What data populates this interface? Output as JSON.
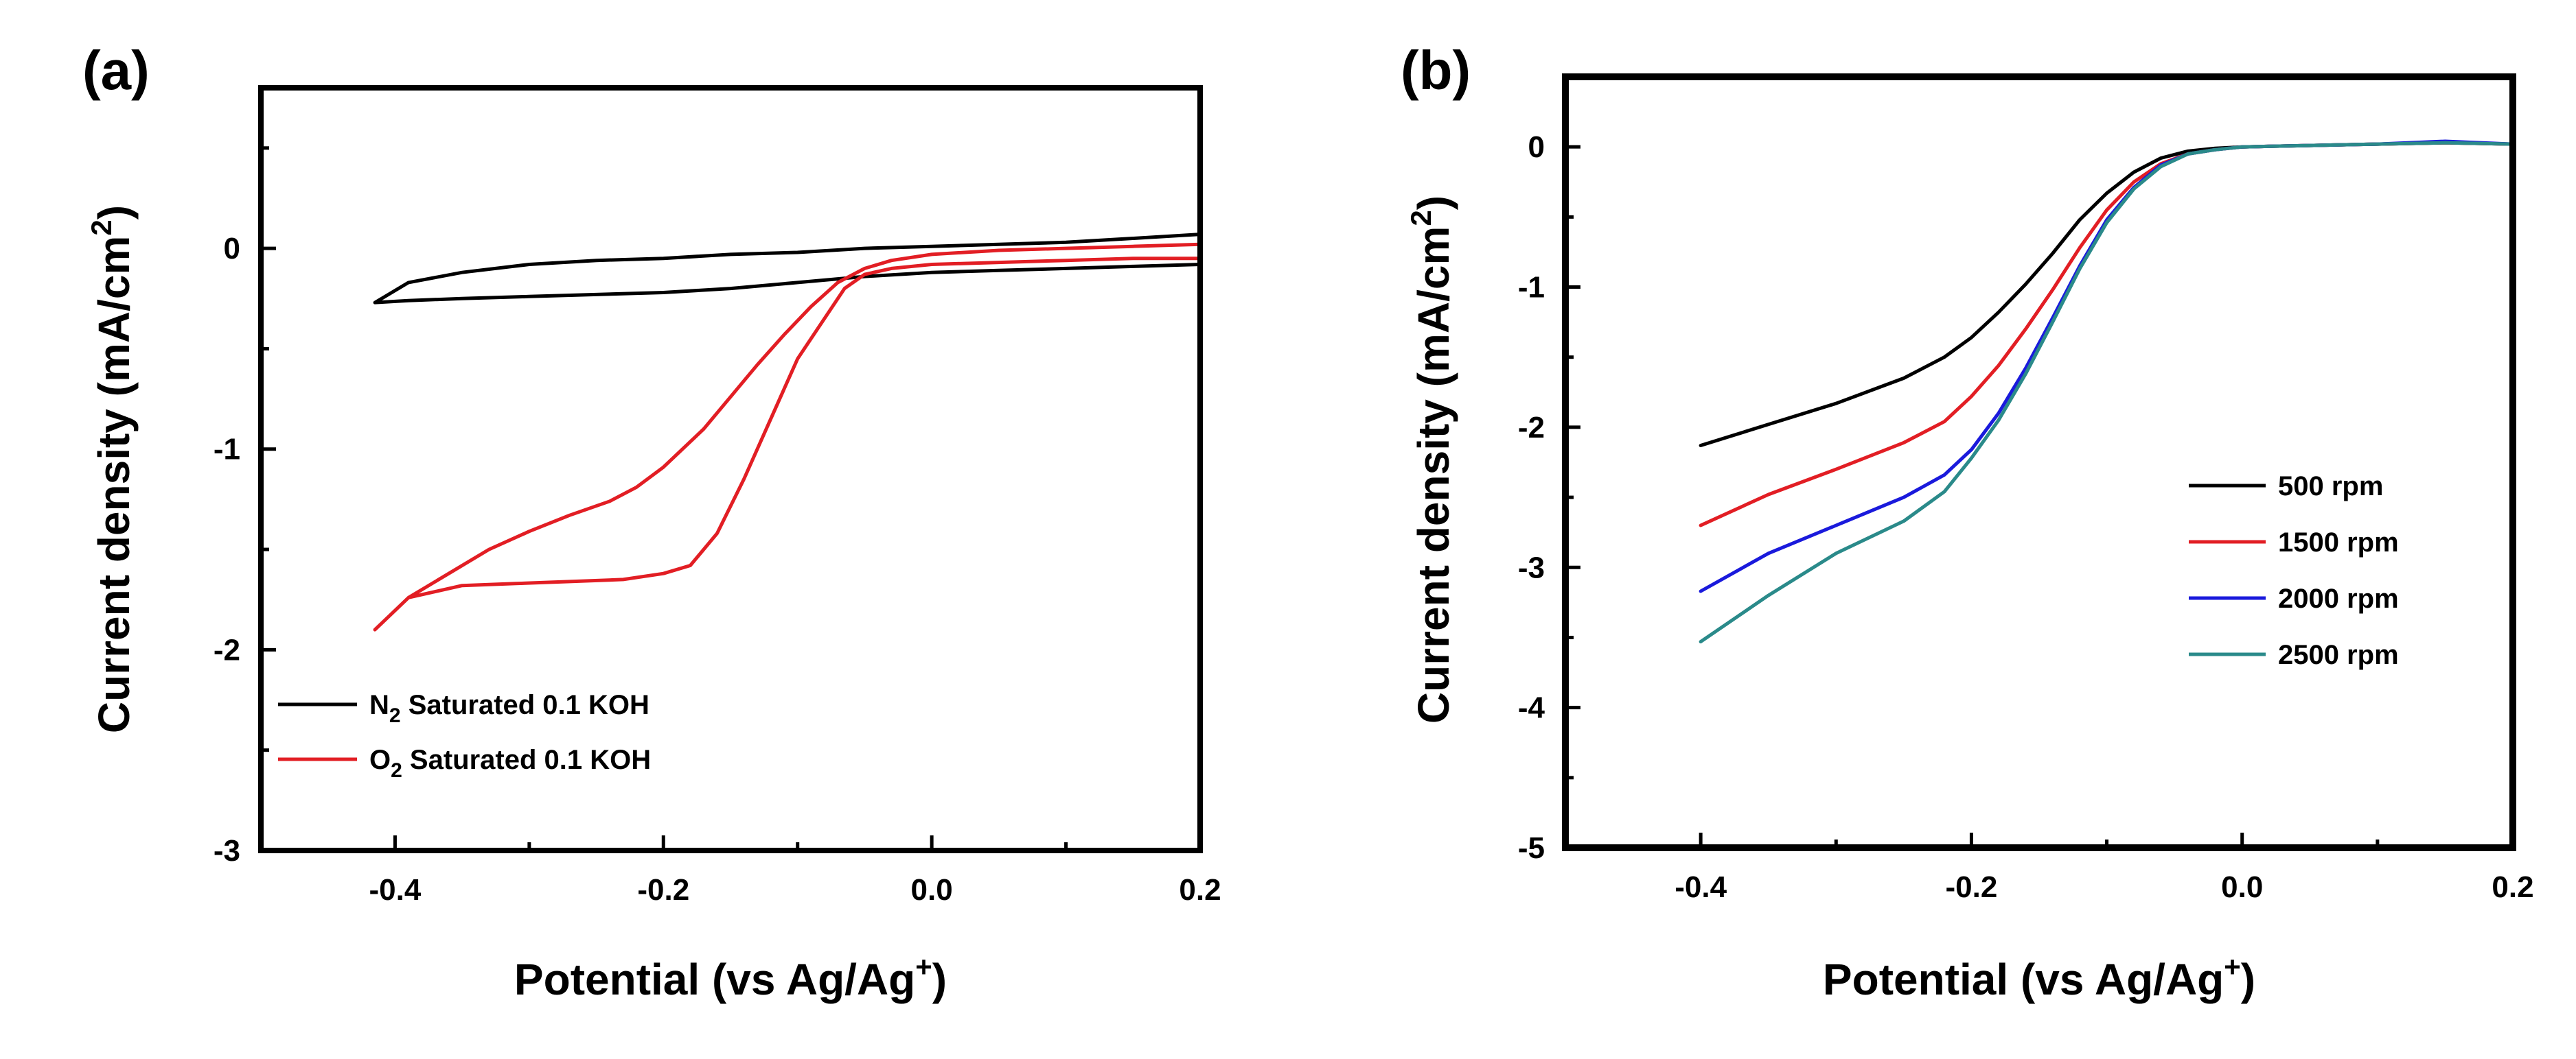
{
  "chart_data": [
    {
      "type": "line",
      "panel_label": "(a)",
      "xlabel_main": "Potential (vs Ag/Ag",
      "xlabel_sup": "+",
      "xlabel_end": ")",
      "ylabel_main": "Current density (mA/cm",
      "ylabel_sup": "2",
      "ylabel_end": ")",
      "xlim": [
        -0.5,
        0.2
      ],
      "ylim": [
        -3,
        0.8
      ],
      "x_ticks": [
        -0.4,
        -0.2,
        0.0,
        0.2
      ],
      "x_tick_labels": [
        "-0.4",
        "-0.2",
        "0.0",
        "0.2"
      ],
      "y_ticks": [
        0,
        -1,
        -2,
        -3
      ],
      "y_tick_labels": [
        "0",
        "-1",
        "-2",
        "-3"
      ],
      "legend_position": "bottom-left",
      "series": [
        {
          "name": "N2 Saturated 0.1 KOH",
          "legend_pre": "N",
          "legend_sub": "2",
          "legend_post": " Saturated 0.1 KOH",
          "color": "#000000",
          "x": [
            -0.415,
            -0.39,
            -0.35,
            -0.3,
            -0.25,
            -0.2,
            -0.15,
            -0.1,
            -0.05,
            0.0,
            0.05,
            0.1,
            0.15,
            0.2,
            0.2,
            0.15,
            0.1,
            0.05,
            0.0,
            -0.05,
            -0.1,
            -0.15,
            -0.2,
            -0.25,
            -0.3,
            -0.35,
            -0.39,
            -0.415
          ],
          "y": [
            -0.27,
            -0.26,
            -0.25,
            -0.24,
            -0.23,
            -0.22,
            -0.2,
            -0.17,
            -0.14,
            -0.12,
            -0.11,
            -0.1,
            -0.09,
            -0.08,
            0.07,
            0.05,
            0.03,
            0.02,
            0.01,
            0.0,
            -0.02,
            -0.03,
            -0.05,
            -0.06,
            -0.08,
            -0.12,
            -0.17,
            -0.27
          ]
        },
        {
          "name": "O2 Saturated 0.1 KOH",
          "legend_pre": "O",
          "legend_sub": "2",
          "legend_post": " Saturated 0.1 KOH",
          "color": "#e21e24",
          "x": [
            -0.415,
            -0.39,
            -0.36,
            -0.33,
            -0.3,
            -0.27,
            -0.24,
            -0.22,
            -0.2,
            -0.17,
            -0.15,
            -0.13,
            -0.11,
            -0.09,
            -0.07,
            -0.05,
            -0.03,
            0.0,
            0.05,
            0.1,
            0.15,
            0.2,
            0.2,
            0.15,
            0.1,
            0.05,
            0.0,
            -0.03,
            -0.05,
            -0.065,
            -0.08,
            -0.1,
            -0.12,
            -0.14,
            -0.16,
            -0.18,
            -0.2,
            -0.23,
            -0.27,
            -0.31,
            -0.35,
            -0.39,
            -0.415
          ],
          "y": [
            -1.9,
            -1.74,
            -1.62,
            -1.5,
            -1.41,
            -1.33,
            -1.26,
            -1.19,
            -1.09,
            -0.9,
            -0.74,
            -0.58,
            -0.43,
            -0.29,
            -0.17,
            -0.1,
            -0.06,
            -0.03,
            -0.01,
            0.0,
            0.01,
            0.02,
            -0.05,
            -0.05,
            -0.06,
            -0.07,
            -0.08,
            -0.1,
            -0.13,
            -0.2,
            -0.35,
            -0.55,
            -0.85,
            -1.15,
            -1.42,
            -1.58,
            -1.62,
            -1.65,
            -1.66,
            -1.67,
            -1.68,
            -1.74,
            -1.9
          ]
        }
      ]
    },
    {
      "type": "line",
      "panel_label": "(b)",
      "xlabel_main": "Potential (vs Ag/Ag",
      "xlabel_sup": "+",
      "xlabel_end": ")",
      "ylabel_main": "Current density (mA/cm",
      "ylabel_sup": "2",
      "ylabel_end": ")",
      "xlim": [
        -0.5,
        0.2
      ],
      "ylim": [
        -5,
        0.5
      ],
      "x_ticks": [
        -0.4,
        -0.2,
        0.0,
        0.2
      ],
      "x_tick_labels": [
        "-0.4",
        "-0.2",
        "0.0",
        "0.2"
      ],
      "y_ticks": [
        0,
        -1,
        -2,
        -3,
        -4,
        -5
      ],
      "y_tick_labels": [
        "0",
        "-1",
        "-2",
        "-3",
        "-4",
        "-5"
      ],
      "legend_position": "right-middle",
      "series": [
        {
          "name": "500 rpm",
          "color": "#000000",
          "x": [
            -0.4,
            -0.35,
            -0.3,
            -0.25,
            -0.22,
            -0.2,
            -0.18,
            -0.16,
            -0.14,
            -0.12,
            -0.1,
            -0.08,
            -0.06,
            -0.04,
            -0.02,
            0.0,
            0.05,
            0.1,
            0.15,
            0.2
          ],
          "y": [
            -2.13,
            -1.98,
            -1.83,
            -1.65,
            -1.5,
            -1.36,
            -1.18,
            -0.98,
            -0.76,
            -0.52,
            -0.33,
            -0.18,
            -0.08,
            -0.03,
            -0.01,
            0.0,
            0.01,
            0.02,
            0.03,
            0.02
          ]
        },
        {
          "name": "1500 rpm",
          "color": "#e21e24",
          "x": [
            -0.4,
            -0.35,
            -0.3,
            -0.25,
            -0.22,
            -0.2,
            -0.18,
            -0.16,
            -0.14,
            -0.12,
            -0.1,
            -0.08,
            -0.06,
            -0.04,
            -0.02,
            0.0,
            0.05,
            0.1,
            0.15,
            0.2
          ],
          "y": [
            -2.7,
            -2.48,
            -2.3,
            -2.11,
            -1.96,
            -1.78,
            -1.56,
            -1.3,
            -1.02,
            -0.72,
            -0.45,
            -0.25,
            -0.12,
            -0.05,
            -0.02,
            0.0,
            0.01,
            0.02,
            0.03,
            0.02
          ]
        },
        {
          "name": "2000 rpm",
          "color": "#1a1adc",
          "x": [
            -0.4,
            -0.35,
            -0.3,
            -0.25,
            -0.22,
            -0.2,
            -0.18,
            -0.16,
            -0.14,
            -0.12,
            -0.1,
            -0.08,
            -0.06,
            -0.04,
            -0.02,
            0.0,
            0.05,
            0.1,
            0.15,
            0.2
          ],
          "y": [
            -3.17,
            -2.9,
            -2.7,
            -2.5,
            -2.34,
            -2.16,
            -1.9,
            -1.58,
            -1.22,
            -0.85,
            -0.52,
            -0.29,
            -0.13,
            -0.05,
            -0.02,
            0.0,
            0.01,
            0.02,
            0.04,
            0.02
          ]
        },
        {
          "name": "2500 rpm",
          "color": "#2a8a8a",
          "x": [
            -0.4,
            -0.35,
            -0.3,
            -0.25,
            -0.22,
            -0.2,
            -0.18,
            -0.16,
            -0.14,
            -0.12,
            -0.1,
            -0.08,
            -0.06,
            -0.04,
            -0.02,
            0.0,
            0.05,
            0.1,
            0.15,
            0.2
          ],
          "y": [
            -3.53,
            -3.2,
            -2.9,
            -2.67,
            -2.46,
            -2.22,
            -1.95,
            -1.62,
            -1.25,
            -0.87,
            -0.54,
            -0.3,
            -0.14,
            -0.05,
            -0.02,
            0.0,
            0.01,
            0.02,
            0.03,
            0.02
          ]
        }
      ]
    }
  ]
}
